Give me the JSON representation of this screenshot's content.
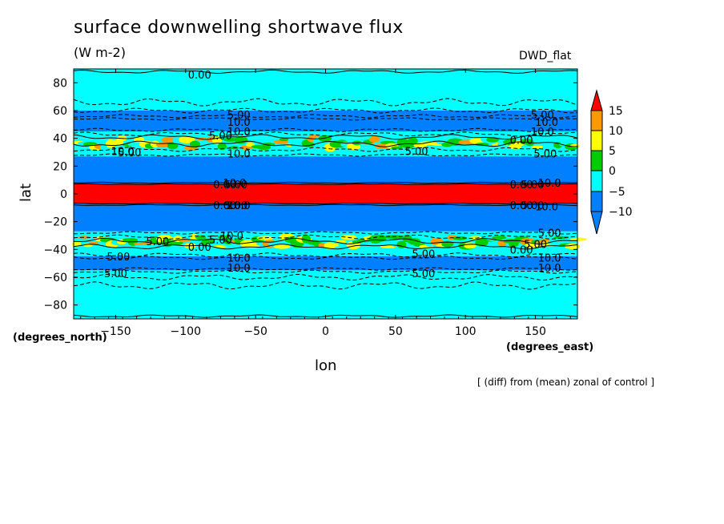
{
  "header": {
    "title": "surface downwelling shortwave flux",
    "units": "(W m-2)",
    "model": "DWD_flat"
  },
  "axes": {
    "ylabel": "lat",
    "xlabel": "lon",
    "y_units": "(degrees_north)",
    "x_units": "(degrees_east)"
  },
  "footer": {
    "note": "[ (diff) from (mean) zonal of control ]"
  },
  "chart_data": {
    "type": "heatmap",
    "title": "surface downwelling shortwave flux",
    "subtitle": "(W m-2)",
    "xlabel": "lon",
    "ylabel": "lat",
    "xlim": [
      -180,
      180
    ],
    "ylim": [
      -90,
      90
    ],
    "xticks": [
      -150,
      -100,
      -50,
      0,
      50,
      100,
      150
    ],
    "yticks": [
      -80,
      -60,
      -40,
      -20,
      0,
      20,
      40,
      60,
      80
    ],
    "colorbar": {
      "levels": [
        15,
        10,
        5,
        0,
        -5,
        -10
      ],
      "colors": {
        "above_15": "#ff0000",
        "10_15": "#ff9900",
        "5_10": "#ffff00",
        "0_5": "#00cc00",
        "m5_0": "#00ffff",
        "m10_m5": "#0080ff"
      },
      "extend": "both"
    },
    "zonal_bands": [
      {
        "lat_from": 60,
        "lat_to": 90,
        "value_class": "m5_0"
      },
      {
        "lat_from": 45,
        "lat_to": 60,
        "value_class": "m10_m5"
      },
      {
        "lat_from": 40,
        "lat_to": 45,
        "value_class": "m5_0"
      },
      {
        "lat_from": 33,
        "lat_to": 40,
        "value_class": "mixed 0..15"
      },
      {
        "lat_from": 27,
        "lat_to": 33,
        "value_class": "m5_0"
      },
      {
        "lat_from": 7,
        "lat_to": 27,
        "value_class": "m10_m5"
      },
      {
        "lat_from": -7,
        "lat_to": 7,
        "value_class": "above_15"
      },
      {
        "lat_from": -27,
        "lat_to": -7,
        "value_class": "m10_m5"
      },
      {
        "lat_from": -31,
        "lat_to": -27,
        "value_class": "m5_0"
      },
      {
        "lat_from": -38,
        "lat_to": -31,
        "value_class": "mixed 0..15"
      },
      {
        "lat_from": -45,
        "lat_to": -38,
        "value_class": "m5_0"
      },
      {
        "lat_from": -55,
        "lat_to": -45,
        "value_class": "m10_m5"
      },
      {
        "lat_from": -90,
        "lat_to": -55,
        "value_class": "m5_0"
      }
    ],
    "contour_labels": [
      {
        "text": "0.00",
        "lon": -90,
        "lat": 86
      },
      {
        "text": "5.00",
        "lon": -62,
        "lat": 57
      },
      {
        "text": "10.0",
        "lon": -62,
        "lat": 52
      },
      {
        "text": "10.0",
        "lon": -62,
        "lat": 45
      },
      {
        "text": "5.00",
        "lon": -75,
        "lat": 42
      },
      {
        "text": "10.0",
        "lon": -62,
        "lat": 29
      },
      {
        "text": "5.00",
        "lon": -140,
        "lat": 30
      },
      {
        "text": "10.0",
        "lon": -145,
        "lat": 31
      },
      {
        "text": "5.00",
        "lon": 65,
        "lat": 31
      },
      {
        "text": "5.00",
        "lon": 155,
        "lat": 57
      },
      {
        "text": "10.0",
        "lon": 158,
        "lat": 52
      },
      {
        "text": "10.0",
        "lon": 155,
        "lat": 45
      },
      {
        "text": "0.00",
        "lon": 140,
        "lat": 39
      },
      {
        "text": "5.00",
        "lon": 157,
        "lat": 29
      },
      {
        "text": "0.00",
        "lon": -72,
        "lat": 7
      },
      {
        "text": "5.00",
        "lon": -64,
        "lat": 7
      },
      {
        "text": "10.0",
        "lon": -65,
        "lat": 8
      },
      {
        "text": "0.00",
        "lon": 140,
        "lat": 7
      },
      {
        "text": "5.00",
        "lon": 148,
        "lat": 7
      },
      {
        "text": "10.0",
        "lon": 160,
        "lat": 8
      },
      {
        "text": "0.00",
        "lon": -72,
        "lat": -8
      },
      {
        "text": "5.00",
        "lon": -64,
        "lat": -8
      },
      {
        "text": "10.0",
        "lon": -62,
        "lat": -8
      },
      {
        "text": "0.00",
        "lon": 140,
        "lat": -8
      },
      {
        "text": "5.00",
        "lon": 148,
        "lat": -8
      },
      {
        "text": "10.0",
        "lon": 158,
        "lat": -9
      },
      {
        "text": "10.0",
        "lon": -67,
        "lat": -30
      },
      {
        "text": "5.00",
        "lon": -75,
        "lat": -33
      },
      {
        "text": "5.00",
        "lon": -120,
        "lat": -34
      },
      {
        "text": "0.00",
        "lon": -90,
        "lat": -38
      },
      {
        "text": "5.00",
        "lon": -148,
        "lat": -45
      },
      {
        "text": "10.0",
        "lon": -62,
        "lat": -46
      },
      {
        "text": "10.0",
        "lon": -62,
        "lat": -53
      },
      {
        "text": "5.00",
        "lon": -150,
        "lat": -57
      },
      {
        "text": "5.00",
        "lon": 70,
        "lat": -43
      },
      {
        "text": "5.00",
        "lon": 70,
        "lat": -57
      },
      {
        "text": "5.00",
        "lon": 160,
        "lat": -28
      },
      {
        "text": "5.00",
        "lon": 150,
        "lat": -36
      },
      {
        "text": "0.00",
        "lon": 140,
        "lat": -40
      },
      {
        "text": "10.0",
        "lon": 160,
        "lat": -46
      },
      {
        "text": "10.0",
        "lon": 160,
        "lat": -53
      }
    ]
  }
}
